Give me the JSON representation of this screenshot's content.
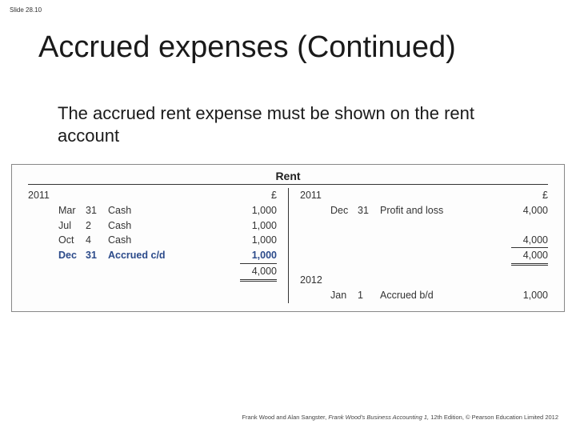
{
  "slide_number": "Slide 28.10",
  "title": "Accrued expenses (Continued)",
  "body_text": "The accrued rent expense must be shown on the rent account",
  "account": {
    "name": "Rent",
    "currency": "£",
    "left": {
      "year": "2011",
      "rows": [
        {
          "mon": "Mar",
          "day": "31",
          "desc": "Cash",
          "amt": "1,000",
          "style": "plain"
        },
        {
          "mon": "Jul",
          "day": "2",
          "desc": "Cash",
          "amt": "1,000",
          "style": "plain"
        },
        {
          "mon": "Oct",
          "day": "4",
          "desc": "Cash",
          "amt": "1,000",
          "style": "plain"
        },
        {
          "mon": "Dec",
          "day": "31",
          "desc": "Accrued c/d",
          "amt": "1,000",
          "style": "accrued"
        }
      ],
      "total": "4,000"
    },
    "right": {
      "year": "2011",
      "rows": [
        {
          "mon": "Dec",
          "day": "31",
          "desc": "Profit and loss",
          "amt": "4,000",
          "style": "plain"
        }
      ],
      "total": "4,000",
      "carried": {
        "year": "2012",
        "mon": "Jan",
        "day": "1",
        "desc": "Accrued b/d",
        "amt": "1,000"
      }
    }
  },
  "footer": {
    "authors": "Frank Wood and Alan Sangster, ",
    "book": "Frank Wood's Business Accounting 1, ",
    "edition": "12th Edition, © Pearson Education Limited 2012"
  }
}
